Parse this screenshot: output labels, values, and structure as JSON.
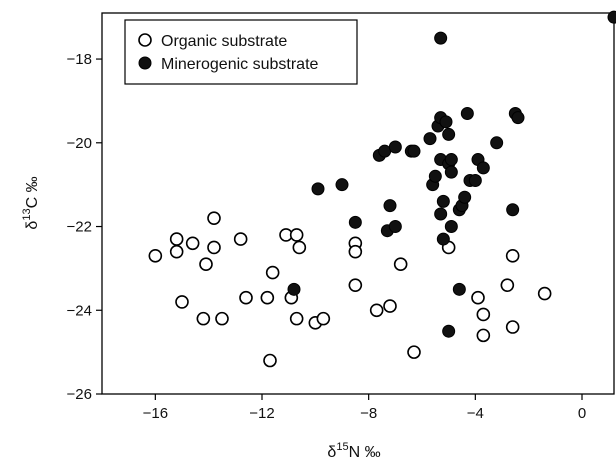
{
  "chart_data": {
    "type": "scatter",
    "title": "",
    "xlabel": {
      "delta": "δ",
      "sup": "15",
      "rest": "N ‰"
    },
    "ylabel": {
      "delta": "δ",
      "sup": "13",
      "rest": "C ‰"
    },
    "xlim": [
      -18,
      1.2
    ],
    "ylim": [
      -26,
      -16.9
    ],
    "xticks": [
      -16,
      -12,
      -8,
      -4,
      0
    ],
    "xtick_labels": [
      "−16",
      "−12",
      "−8",
      "−4",
      "0"
    ],
    "yticks": [
      -26,
      -24,
      -22,
      -20,
      -18
    ],
    "ytick_labels": [
      "−26",
      "−24",
      "−22",
      "−20",
      "−18"
    ],
    "grid": false,
    "legend_position": "top-left",
    "series": [
      {
        "name": "Organic substrate",
        "marker": "open-circle",
        "points": [
          [
            -16.0,
            -22.7
          ],
          [
            -15.2,
            -22.3
          ],
          [
            -15.2,
            -22.6
          ],
          [
            -15.0,
            -23.8
          ],
          [
            -14.6,
            -22.4
          ],
          [
            -14.2,
            -24.2
          ],
          [
            -14.1,
            -22.9
          ],
          [
            -13.8,
            -21.8
          ],
          [
            -13.8,
            -22.5
          ],
          [
            -13.5,
            -24.2
          ],
          [
            -12.8,
            -22.3
          ],
          [
            -12.6,
            -23.7
          ],
          [
            -11.8,
            -23.7
          ],
          [
            -11.7,
            -25.2
          ],
          [
            -11.6,
            -23.1
          ],
          [
            -11.1,
            -22.2
          ],
          [
            -10.9,
            -23.7
          ],
          [
            -10.7,
            -24.2
          ],
          [
            -10.7,
            -22.2
          ],
          [
            -10.6,
            -22.5
          ],
          [
            -10.0,
            -24.3
          ],
          [
            -9.7,
            -24.2
          ],
          [
            -8.5,
            -23.4
          ],
          [
            -8.5,
            -22.4
          ],
          [
            -8.5,
            -22.6
          ],
          [
            -7.7,
            -24.0
          ],
          [
            -7.2,
            -23.9
          ],
          [
            -6.8,
            -22.9
          ],
          [
            -6.3,
            -25.0
          ],
          [
            -5.0,
            -22.5
          ],
          [
            -3.9,
            -23.7
          ],
          [
            -3.7,
            -24.1
          ],
          [
            -3.7,
            -24.6
          ],
          [
            -2.8,
            -23.4
          ],
          [
            -2.6,
            -24.4
          ],
          [
            -2.6,
            -22.7
          ],
          [
            -1.4,
            -23.6
          ]
        ]
      },
      {
        "name": "Minerogenic substrate",
        "marker": "filled-circle",
        "points": [
          [
            1.2,
            -17.0
          ],
          [
            -5.3,
            -17.5
          ],
          [
            -10.8,
            -23.5
          ],
          [
            -9.9,
            -21.1
          ],
          [
            -9.0,
            -21.0
          ],
          [
            -8.5,
            -21.9
          ],
          [
            -7.6,
            -20.3
          ],
          [
            -7.4,
            -20.2
          ],
          [
            -7.2,
            -21.5
          ],
          [
            -7.3,
            -22.1
          ],
          [
            -7.0,
            -20.1
          ],
          [
            -7.0,
            -22.0
          ],
          [
            -6.4,
            -20.2
          ],
          [
            -6.3,
            -20.2
          ],
          [
            -5.7,
            -19.9
          ],
          [
            -5.6,
            -21.0
          ],
          [
            -5.5,
            -20.8
          ],
          [
            -5.4,
            -19.6
          ],
          [
            -5.3,
            -19.4
          ],
          [
            -5.3,
            -20.4
          ],
          [
            -5.3,
            -21.7
          ],
          [
            -5.2,
            -21.4
          ],
          [
            -5.2,
            -22.3
          ],
          [
            -5.1,
            -19.5
          ],
          [
            -5.0,
            -19.8
          ],
          [
            -5.0,
            -20.5
          ],
          [
            -4.9,
            -20.4
          ],
          [
            -4.9,
            -20.7
          ],
          [
            -4.9,
            -22.0
          ],
          [
            -5.0,
            -24.5
          ],
          [
            -4.6,
            -21.6
          ],
          [
            -4.5,
            -21.5
          ],
          [
            -4.4,
            -21.3
          ],
          [
            -4.3,
            -19.3
          ],
          [
            -4.2,
            -20.9
          ],
          [
            -4.0,
            -20.9
          ],
          [
            -3.9,
            -20.4
          ],
          [
            -3.7,
            -20.6
          ],
          [
            -4.6,
            -23.5
          ],
          [
            -3.2,
            -20.0
          ],
          [
            -2.6,
            -21.6
          ],
          [
            -2.5,
            -19.3
          ],
          [
            -2.4,
            -19.4
          ]
        ]
      }
    ]
  }
}
